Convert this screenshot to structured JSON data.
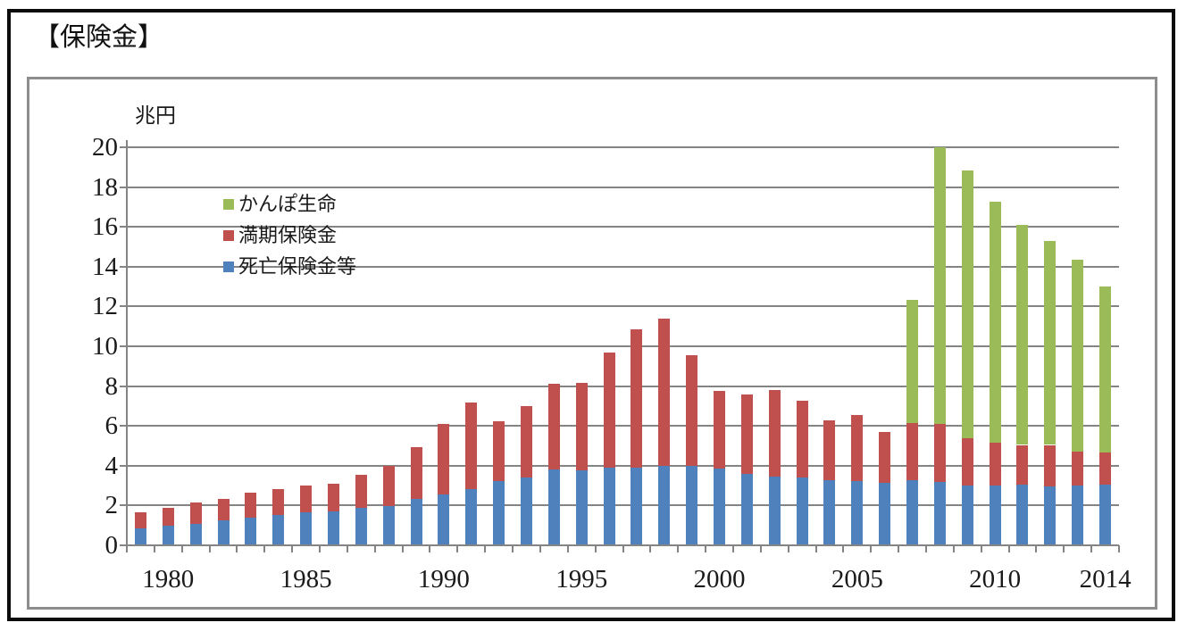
{
  "title": "【保険金】",
  "unit_label": "兆円",
  "legend": [
    {
      "label": "かんぽ生命",
      "color": "#9BBB59"
    },
    {
      "label": "満期保険金",
      "color": "#C0504D"
    },
    {
      "label": "死亡保険金等",
      "color": "#4F81BD"
    }
  ],
  "colors": {
    "kampo_green": "#9BBB59",
    "maturity_red": "#C0504D",
    "death_blue": "#4F81BD",
    "gridline_gray": "#848484",
    "frame_black": "#0b0b0b",
    "box_border_gray": "#8d8d8d"
  },
  "chart_data": {
    "type": "bar",
    "stacked": true,
    "title": "【保険金】",
    "ylabel": "兆円",
    "xlabel": "",
    "ylim": [
      0,
      20
    ],
    "y_ticks": [
      0,
      2,
      4,
      6,
      8,
      10,
      12,
      14,
      16,
      18,
      20
    ],
    "grid": true,
    "legend_position": "upper-left-inside",
    "categories": [
      1979,
      1980,
      1981,
      1982,
      1983,
      1984,
      1985,
      1986,
      1987,
      1988,
      1989,
      1990,
      1991,
      1992,
      1993,
      1994,
      1995,
      1996,
      1997,
      1998,
      1999,
      2000,
      2001,
      2002,
      2003,
      2004,
      2005,
      2006,
      2007,
      2008,
      2009,
      2010,
      2011,
      2012,
      2013,
      2014
    ],
    "x_tick_labels": [
      "1980",
      "1985",
      "1990",
      "1995",
      "2000",
      "2005",
      "2010",
      "2014"
    ],
    "series": [
      {
        "name": "死亡保険金等",
        "color": "#4F81BD",
        "values": [
          0.8,
          0.95,
          1.05,
          1.2,
          1.35,
          1.5,
          1.6,
          1.65,
          1.85,
          1.95,
          2.3,
          2.5,
          2.8,
          3.2,
          3.35,
          3.75,
          3.7,
          3.85,
          3.85,
          3.95,
          3.95,
          3.8,
          3.55,
          3.4,
          3.35,
          3.25,
          3.2,
          3.1,
          3.25,
          3.15,
          2.95,
          2.95,
          3.0,
          2.9,
          2.95,
          3.0
        ]
      },
      {
        "name": "満期保険金",
        "color": "#C0504D",
        "values": [
          0.8,
          0.9,
          1.05,
          1.1,
          1.25,
          1.3,
          1.35,
          1.4,
          1.65,
          2.0,
          2.6,
          3.55,
          4.35,
          3.0,
          3.6,
          4.3,
          4.4,
          5.8,
          6.95,
          7.4,
          5.55,
          3.9,
          4.0,
          4.35,
          3.85,
          3.0,
          3.3,
          2.55,
          2.85,
          2.9,
          2.4,
          2.15,
          2.0,
          2.1,
          1.7,
          1.6
        ]
      },
      {
        "name": "かんぽ生命",
        "color": "#9BBB59",
        "values": [
          0,
          0,
          0,
          0,
          0,
          0,
          0,
          0,
          0,
          0,
          0,
          0,
          0,
          0,
          0,
          0,
          0,
          0,
          0,
          0,
          0,
          0,
          0,
          0,
          0,
          0,
          0,
          0,
          6.2,
          13.9,
          13.45,
          12.1,
          11.05,
          10.25,
          9.65,
          8.35
        ]
      }
    ]
  }
}
